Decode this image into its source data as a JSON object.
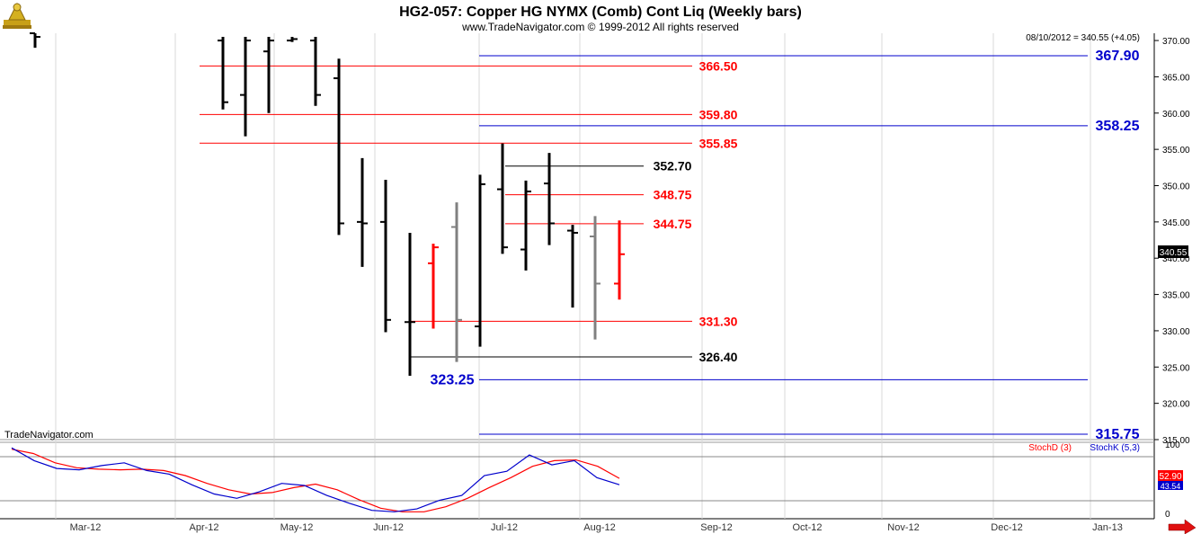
{
  "header": {
    "title": "HG2-057:  Copper HG NYMX (Comb) Cont Liq  (Weekly bars)",
    "copyright": "www.TradeNavigator.com © 1999-2012 All rights reserved",
    "quote": "08/10/2012 = 340.55 (+4.05)",
    "watermark": "TradeNavigator.com"
  },
  "chart_data": {
    "type": "ohlc",
    "price_axis": {
      "ylim": [
        315,
        371
      ],
      "ticks": [
        "315.00",
        "320.00",
        "325.00",
        "330.00",
        "335.00",
        "340.00",
        "345.00",
        "350.00",
        "355.00",
        "360.00",
        "365.00",
        "370.00"
      ],
      "last_price_label": "340.55"
    },
    "time_axis": {
      "labels": [
        "Mar-12",
        "Apr-12",
        "May-12",
        "Jun-12",
        "Jul-12",
        "Aug-12",
        "Sep-12",
        "Oct-12",
        "Nov-12",
        "Dec-12",
        "Jan-13"
      ]
    },
    "bars": [
      {
        "date": "Feb-12",
        "high": 371.5,
        "low": 369.0,
        "open": 371.0,
        "close": 370.5,
        "color": "#000000"
      },
      {
        "date": "Apr-12",
        "high": 370.5,
        "low": 360.5,
        "open": 370.0,
        "close": 361.5,
        "color": "#000000"
      },
      {
        "date": "Apr-12",
        "high": 370.5,
        "low": 356.8,
        "open": 362.5,
        "close": 370.0,
        "color": "#000000"
      },
      {
        "date": "Apr-12",
        "high": 370.5,
        "low": 360.0,
        "open": 368.5,
        "close": 370.0,
        "color": "#000000"
      },
      {
        "date": "Apr-12",
        "high": 370.5,
        "low": 369.8,
        "open": 370.0,
        "close": 370.2,
        "color": "#000000"
      },
      {
        "date": "May-12",
        "high": 370.5,
        "low": 361.0,
        "open": 370.0,
        "close": 362.5,
        "color": "#000000"
      },
      {
        "date": "May-12",
        "high": 367.5,
        "low": 343.2,
        "open": 364.8,
        "close": 344.8,
        "color": "#000000"
      },
      {
        "date": "May-12",
        "high": 353.8,
        "low": 338.8,
        "open": 345.0,
        "close": 344.8,
        "color": "#000000"
      },
      {
        "date": "May-12",
        "high": 350.8,
        "low": 329.8,
        "open": 345.0,
        "close": 331.5,
        "color": "#000000"
      },
      {
        "date": "Jun-12",
        "high": 343.5,
        "low": 323.8,
        "open": 331.2,
        "close": 331.2,
        "color": "#000000"
      },
      {
        "date": "Jun-12",
        "high": 342.0,
        "low": 330.3,
        "open": 339.3,
        "close": 341.5,
        "color": "#ff0000"
      },
      {
        "date": "Jun-12",
        "high": 347.7,
        "low": 325.7,
        "open": 344.3,
        "close": 331.5,
        "color": "#808080"
      },
      {
        "date": "Jun-12",
        "high": 351.5,
        "low": 327.8,
        "open": 330.6,
        "close": 350.2,
        "color": "#000000"
      },
      {
        "date": "Jul-12",
        "high": 355.8,
        "low": 340.6,
        "open": 349.5,
        "close": 341.5,
        "color": "#000000"
      },
      {
        "date": "Jul-12",
        "high": 350.7,
        "low": 338.3,
        "open": 341.2,
        "close": 349.2,
        "color": "#000000"
      },
      {
        "date": "Jul-12",
        "high": 354.5,
        "low": 341.8,
        "open": 350.3,
        "close": 344.8,
        "color": "#000000"
      },
      {
        "date": "Jul-12",
        "high": 344.6,
        "low": 333.2,
        "open": 343.8,
        "close": 343.5,
        "color": "#000000"
      },
      {
        "date": "Aug-12",
        "high": 345.8,
        "low": 328.8,
        "open": 343.0,
        "close": 336.5,
        "color": "#808080"
      },
      {
        "date": "Aug-12",
        "high": 345.2,
        "low": 334.3,
        "open": 336.5,
        "close": 340.55,
        "color": "#ff0000"
      }
    ],
    "levels": [
      {
        "value": 366.5,
        "label": "366.50",
        "color": "#ff0000",
        "style": "red"
      },
      {
        "value": 359.8,
        "label": "359.80",
        "color": "#ff0000",
        "style": "red"
      },
      {
        "value": 355.85,
        "label": "355.85",
        "color": "#ff0000",
        "style": "red"
      },
      {
        "value": 352.7,
        "label": "352.70",
        "color": "#000000",
        "style": "black"
      },
      {
        "value": 348.75,
        "label": "348.75",
        "color": "#ff0000",
        "style": "red-short"
      },
      {
        "value": 344.75,
        "label": "344.75",
        "color": "#ff0000",
        "style": "red-short"
      },
      {
        "value": 331.3,
        "label": "331.30",
        "color": "#ff0000",
        "style": "red-mid"
      },
      {
        "value": 326.4,
        "label": "326.40",
        "color": "#000000",
        "style": "black-mid"
      },
      {
        "value": 367.9,
        "label": "367.90",
        "color": "#0000cc",
        "style": "blue"
      },
      {
        "value": 358.25,
        "label": "358.25",
        "color": "#0000cc",
        "style": "blue"
      },
      {
        "value": 323.25,
        "label": "323.25",
        "color": "#0000cc",
        "style": "blue-left"
      },
      {
        "value": 315.75,
        "label": "315.75",
        "color": "#0000cc",
        "style": "blue"
      }
    ],
    "stochastic": {
      "legend_d": "StochD (3)",
      "legend_k": "StochK (5,3)",
      "ylim": [
        0,
        100
      ],
      "ticks": [
        "100",
        "0"
      ],
      "d_last_label": "52.90",
      "k_last_label": "43.54",
      "stoch_d": [
        94,
        88,
        75,
        68,
        66,
        65,
        66,
        64,
        57,
        46,
        37,
        31,
        33,
        40,
        45,
        37,
        23,
        11,
        6,
        6,
        13,
        25,
        40,
        54,
        70,
        78,
        79,
        70,
        53
      ],
      "stoch_k": [
        96,
        78,
        67,
        65,
        71,
        75,
        64,
        59,
        44,
        31,
        25,
        34,
        46,
        43,
        29,
        18,
        8,
        6,
        10,
        22,
        29,
        57,
        63,
        86,
        72,
        78,
        54,
        44
      ],
      "stoch_d_color": "#ff0000",
      "stoch_k_color": "#0000cc"
    }
  }
}
